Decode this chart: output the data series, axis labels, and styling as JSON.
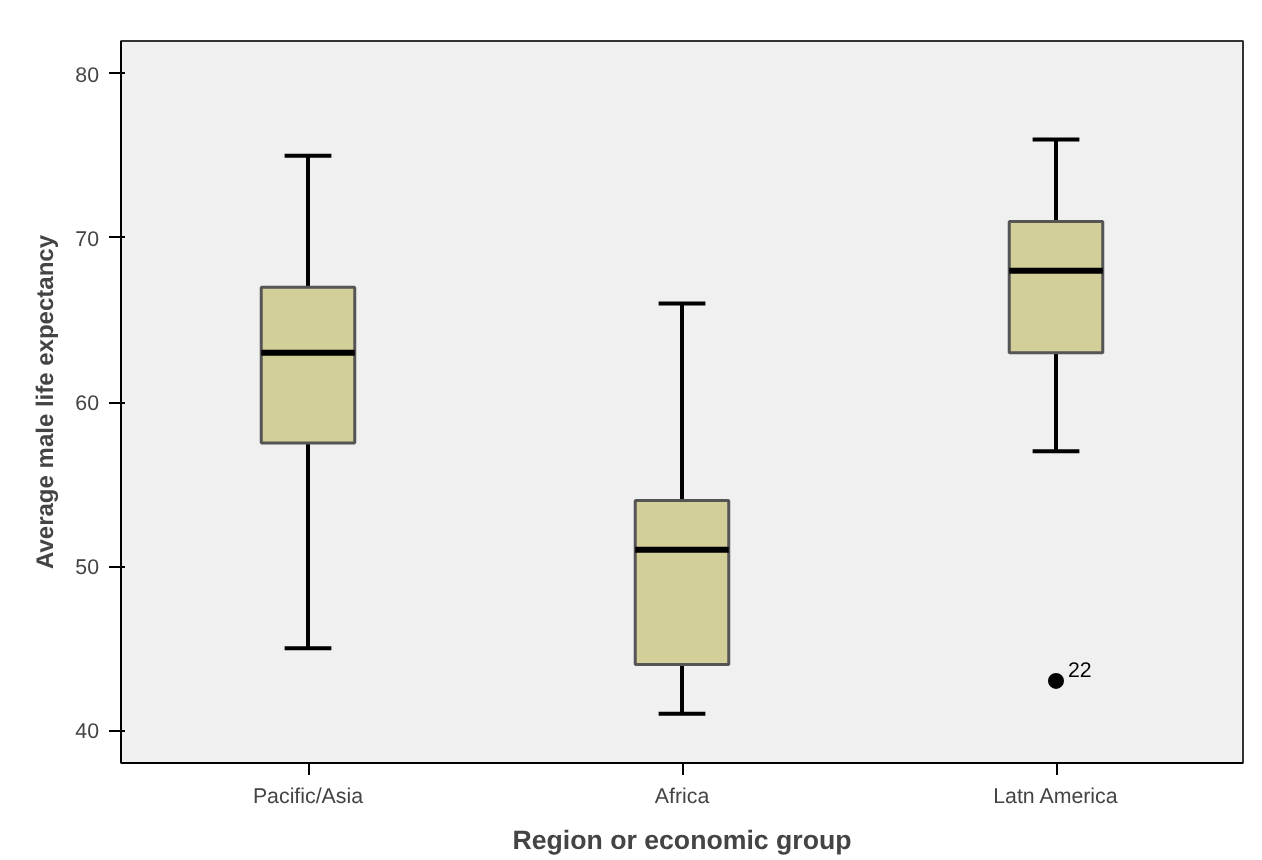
{
  "chart_data": {
    "type": "box",
    "xlabel": "Region or economic group",
    "ylabel": "Average male life expectancy",
    "categories": [
      "Pacific/Asia",
      "Africa",
      "Latn America"
    ],
    "color": "#d3cf98",
    "boxes": [
      {
        "low": 45,
        "q1": 57.5,
        "median": 63,
        "q3": 67,
        "high": 75
      },
      {
        "low": 41,
        "q1": 44,
        "median": 51,
        "q3": 54,
        "high": 66
      },
      {
        "low": 57,
        "q1": 63,
        "median": 68,
        "q3": 71,
        "high": 76,
        "outliers": [
          43
        ]
      }
    ],
    "annotations": [
      "22"
    ],
    "ylim": [
      38,
      82
    ],
    "yticks": [
      40,
      50,
      60,
      70,
      80
    ],
    "grid": false
  }
}
